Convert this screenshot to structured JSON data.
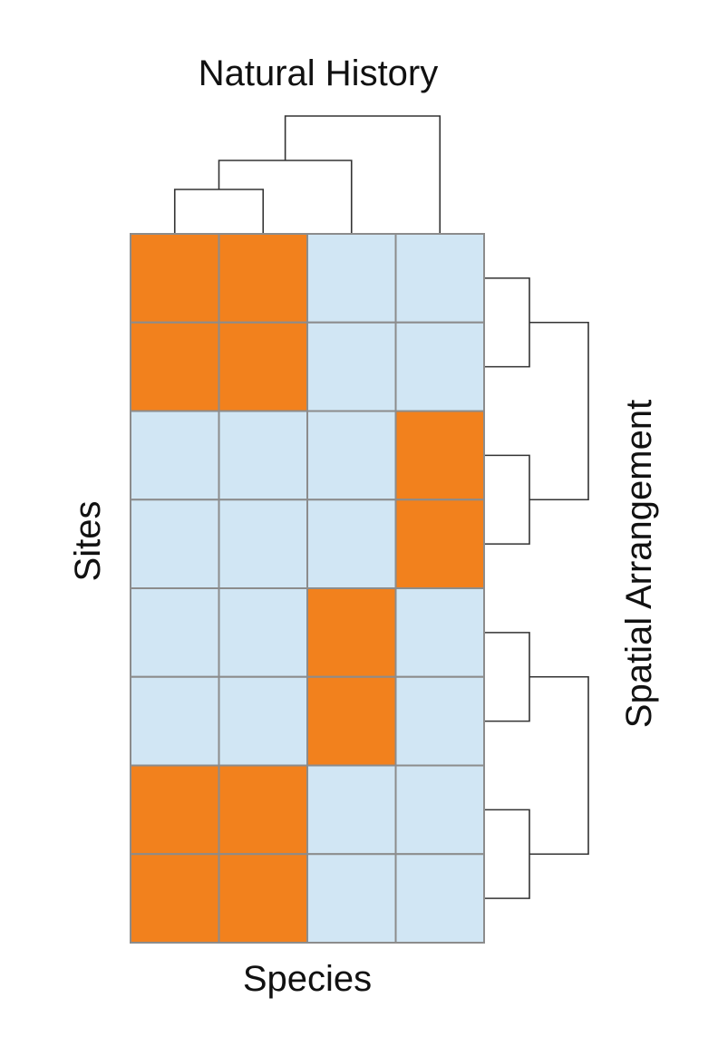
{
  "labels": {
    "top": "Natural History",
    "bottom": "Species",
    "left": "Sites",
    "right": "Spatial Arrangement"
  },
  "colors": {
    "present": "#f2811d",
    "absent": "#d1e6f4",
    "grid": "#8c8c8c",
    "dendrogram": "#333333"
  },
  "matrix": [
    [
      1,
      1,
      0,
      0
    ],
    [
      1,
      1,
      0,
      0
    ],
    [
      0,
      0,
      0,
      1
    ],
    [
      0,
      0,
      0,
      1
    ],
    [
      0,
      0,
      1,
      0
    ],
    [
      0,
      0,
      1,
      0
    ],
    [
      1,
      1,
      0,
      0
    ],
    [
      1,
      1,
      0,
      0
    ]
  ],
  "column_tree": {
    "merges": [
      [
        0,
        1
      ],
      [
        "c0-1",
        2
      ],
      [
        "c0-1-2",
        3
      ]
    ]
  },
  "row_tree": {
    "merges": [
      [
        0,
        1
      ],
      [
        2,
        3
      ],
      [
        4,
        5
      ],
      [
        6,
        7
      ],
      [
        "r0-1",
        "r2-3"
      ],
      [
        "r4-5",
        "r6-7"
      ]
    ]
  }
}
